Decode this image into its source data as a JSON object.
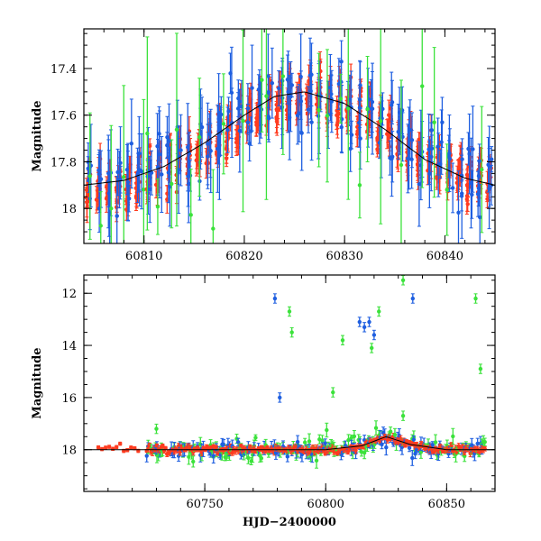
{
  "colors": {
    "series_red": "#ff3b1f",
    "series_blue": "#1f5fe0",
    "series_green": "#3be23b",
    "model_curve": "#000000"
  },
  "chart_data": [
    {
      "type": "scatter",
      "panel": "top",
      "title": "",
      "xlabel": "",
      "ylabel": "Magnitude",
      "xlim": [
        60804,
        60845
      ],
      "ylim": [
        18.15,
        17.23
      ],
      "y_inverted": true,
      "x_ticks": [
        "60810",
        "60820",
        "60830",
        "60840"
      ],
      "y_ticks": [
        "17.4",
        "17.6",
        "17.8",
        "18"
      ],
      "model_curve": {
        "x": [
          60804,
          60808,
          60812,
          60816,
          60820,
          60823,
          60826,
          60830,
          60834,
          60838,
          60842,
          60845
        ],
        "y": [
          17.9,
          17.88,
          17.82,
          17.72,
          17.6,
          17.52,
          17.5,
          17.55,
          17.66,
          17.79,
          17.87,
          17.9
        ]
      },
      "series": [
        {
          "color_key": "series_red",
          "x_range": [
            60804,
            60845
          ],
          "trend": "follows model, many points, error ~0.05"
        },
        {
          "color_key": "series_blue",
          "x_range": [
            60804,
            60845
          ],
          "trend": "follows model with larger scatter, error ~0.15"
        },
        {
          "color_key": "series_green",
          "x_range": [
            60804,
            60845
          ],
          "trend": "sparse, large scatter, error ~0.3"
        }
      ]
    },
    {
      "type": "scatter",
      "panel": "bottom",
      "title": "",
      "xlabel": "HJD−2400000",
      "ylabel": "Magnitude",
      "xlim": [
        60700,
        60870
      ],
      "ylim": [
        19.6,
        11.3
      ],
      "y_inverted": true,
      "x_ticks": [
        "60750",
        "60800",
        "60850"
      ],
      "y_ticks": [
        "12",
        "14",
        "16",
        "18"
      ],
      "baseline_mag": 18.0,
      "outliers": [
        {
          "color_key": "series_blue",
          "x": 60779,
          "y": 12.2
        },
        {
          "color_key": "series_blue",
          "x": 60814,
          "y": 13.1
        },
        {
          "color_key": "series_blue",
          "x": 60816,
          "y": 13.3
        },
        {
          "color_key": "series_blue",
          "x": 60818,
          "y": 13.1
        },
        {
          "color_key": "series_blue",
          "x": 60820,
          "y": 13.6
        },
        {
          "color_key": "series_blue",
          "x": 60836,
          "y": 12.2
        },
        {
          "color_key": "series_blue",
          "x": 60781,
          "y": 16.0
        },
        {
          "color_key": "series_green",
          "x": 60785,
          "y": 12.7
        },
        {
          "color_key": "series_green",
          "x": 60786,
          "y": 13.5
        },
        {
          "color_key": "series_green",
          "x": 60807,
          "y": 13.8
        },
        {
          "color_key": "series_green",
          "x": 60803,
          "y": 15.8
        },
        {
          "color_key": "series_green",
          "x": 60819,
          "y": 14.1
        },
        {
          "color_key": "series_green",
          "x": 60822,
          "y": 12.7
        },
        {
          "color_key": "series_green",
          "x": 60832,
          "y": 11.5
        },
        {
          "color_key": "series_green",
          "x": 60862,
          "y": 12.2
        },
        {
          "color_key": "series_green",
          "x": 60864,
          "y": 14.9
        },
        {
          "color_key": "series_green",
          "x": 60730,
          "y": 17.2
        },
        {
          "color_key": "series_green",
          "x": 60832,
          "y": 16.7
        }
      ]
    }
  ]
}
